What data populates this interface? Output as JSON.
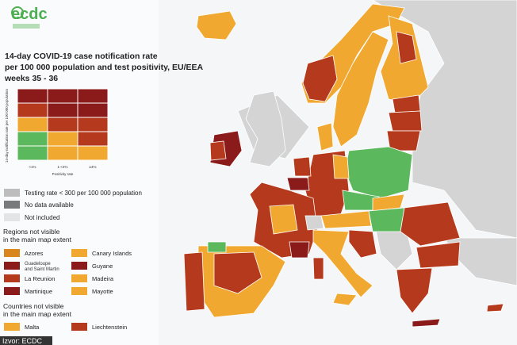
{
  "header": {
    "logo": "ecdc",
    "title": [
      "14-day COVID-19 case notification rate",
      "per 100 000 population and test positivity, EU/EEA",
      "weeks 35 - 36"
    ]
  },
  "legend": {
    "matrix": {
      "columns": [
        "<1%",
        "1-<4%",
        "≥4%"
      ],
      "x_label": "Positivity rate",
      "y_label": "14-day notification rate per 100 000 population"
    },
    "key": [
      "Testing rate < 300 per 100 000 population",
      "No data available",
      "Not included"
    ],
    "regions_heading": [
      "Regions not visible",
      "in the main map extent"
    ],
    "regions": [
      "Azores",
      [
        "Guadeloupe",
        "and Saint Martin"
      ],
      "La Reunion",
      "Martinique",
      "Canary Islands",
      "Guyane",
      "Madeira",
      "Mayotte"
    ],
    "countries_heading": [
      "Countries not visible",
      "in the main map extent"
    ],
    "countries": [
      "Malta",
      "Liechtenstein"
    ]
  },
  "footer": {
    "source": "Izvor: ECDC"
  }
}
